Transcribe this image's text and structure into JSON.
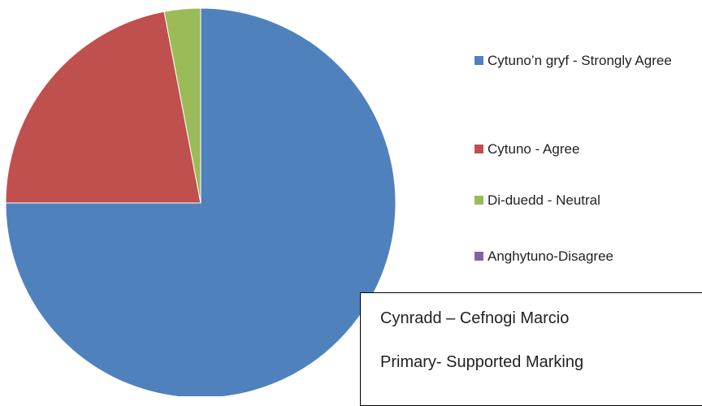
{
  "chart_data": {
    "type": "pie",
    "categories": [
      "Cytuno’n gryf - Strongly Agree",
      "Cytuno - Agree",
      "Di-duedd - Neutral",
      "Anghytuno-Disagree"
    ],
    "values": [
      75,
      22,
      3,
      0
    ],
    "colors": [
      "#4f81bd",
      "#c0504d",
      "#9bbb59",
      "#8064a2"
    ],
    "legend": "right",
    "annotations": [
      "Cynradd – Cefnogi Marcio",
      "Primary- Supported Marking"
    ]
  }
}
